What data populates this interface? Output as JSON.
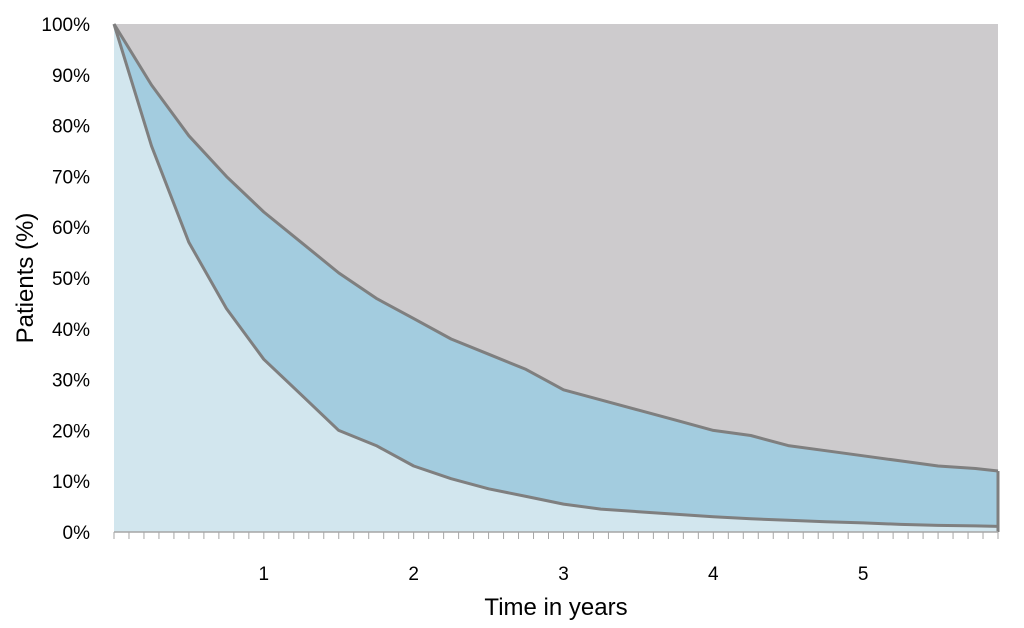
{
  "chart_data": {
    "type": "area",
    "title": "",
    "xlabel": "Time in years",
    "ylabel": "Patients (%)",
    "xlim": [
      0,
      5.9
    ],
    "ylim": [
      0,
      100
    ],
    "x_ticks": [
      1,
      2,
      3,
      4,
      5
    ],
    "y_ticks": [
      0,
      10,
      20,
      30,
      40,
      50,
      60,
      70,
      80,
      90,
      100
    ],
    "y_tick_suffix": "%",
    "x": [
      0,
      0.25,
      0.5,
      0.75,
      1,
      1.25,
      1.5,
      1.75,
      2,
      2.25,
      2.5,
      2.75,
      3,
      3.25,
      3.5,
      3.75,
      4,
      4.25,
      4.5,
      4.75,
      5,
      5.25,
      5.5,
      5.75,
      5.9
    ],
    "series": [
      {
        "color": "#d2e6ee",
        "values": [
          100,
          76,
          57,
          44,
          34,
          27,
          20,
          17,
          13,
          10.5,
          8.5,
          7,
          5.5,
          4.5,
          4,
          3.5,
          3,
          2.6,
          2.3,
          2,
          1.8,
          1.5,
          1.3,
          1.2,
          1.1
        ]
      },
      {
        "color": "#a3ccdf",
        "values": [
          100,
          88,
          78,
          70,
          63,
          57,
          51,
          46,
          42,
          38,
          35,
          32,
          28,
          26,
          24,
          22,
          20,
          19,
          17,
          16,
          15,
          14,
          13,
          12.5,
          12
        ]
      },
      {
        "color": "#cdcbcd",
        "values": [
          100,
          100,
          100,
          100,
          100,
          100,
          100,
          100,
          100,
          100,
          100,
          100,
          100,
          100,
          100,
          100,
          100,
          100,
          100,
          100,
          100,
          100,
          100,
          100,
          100
        ]
      }
    ],
    "line_color": "#7f7f7f",
    "grid": false,
    "legend": "none"
  }
}
